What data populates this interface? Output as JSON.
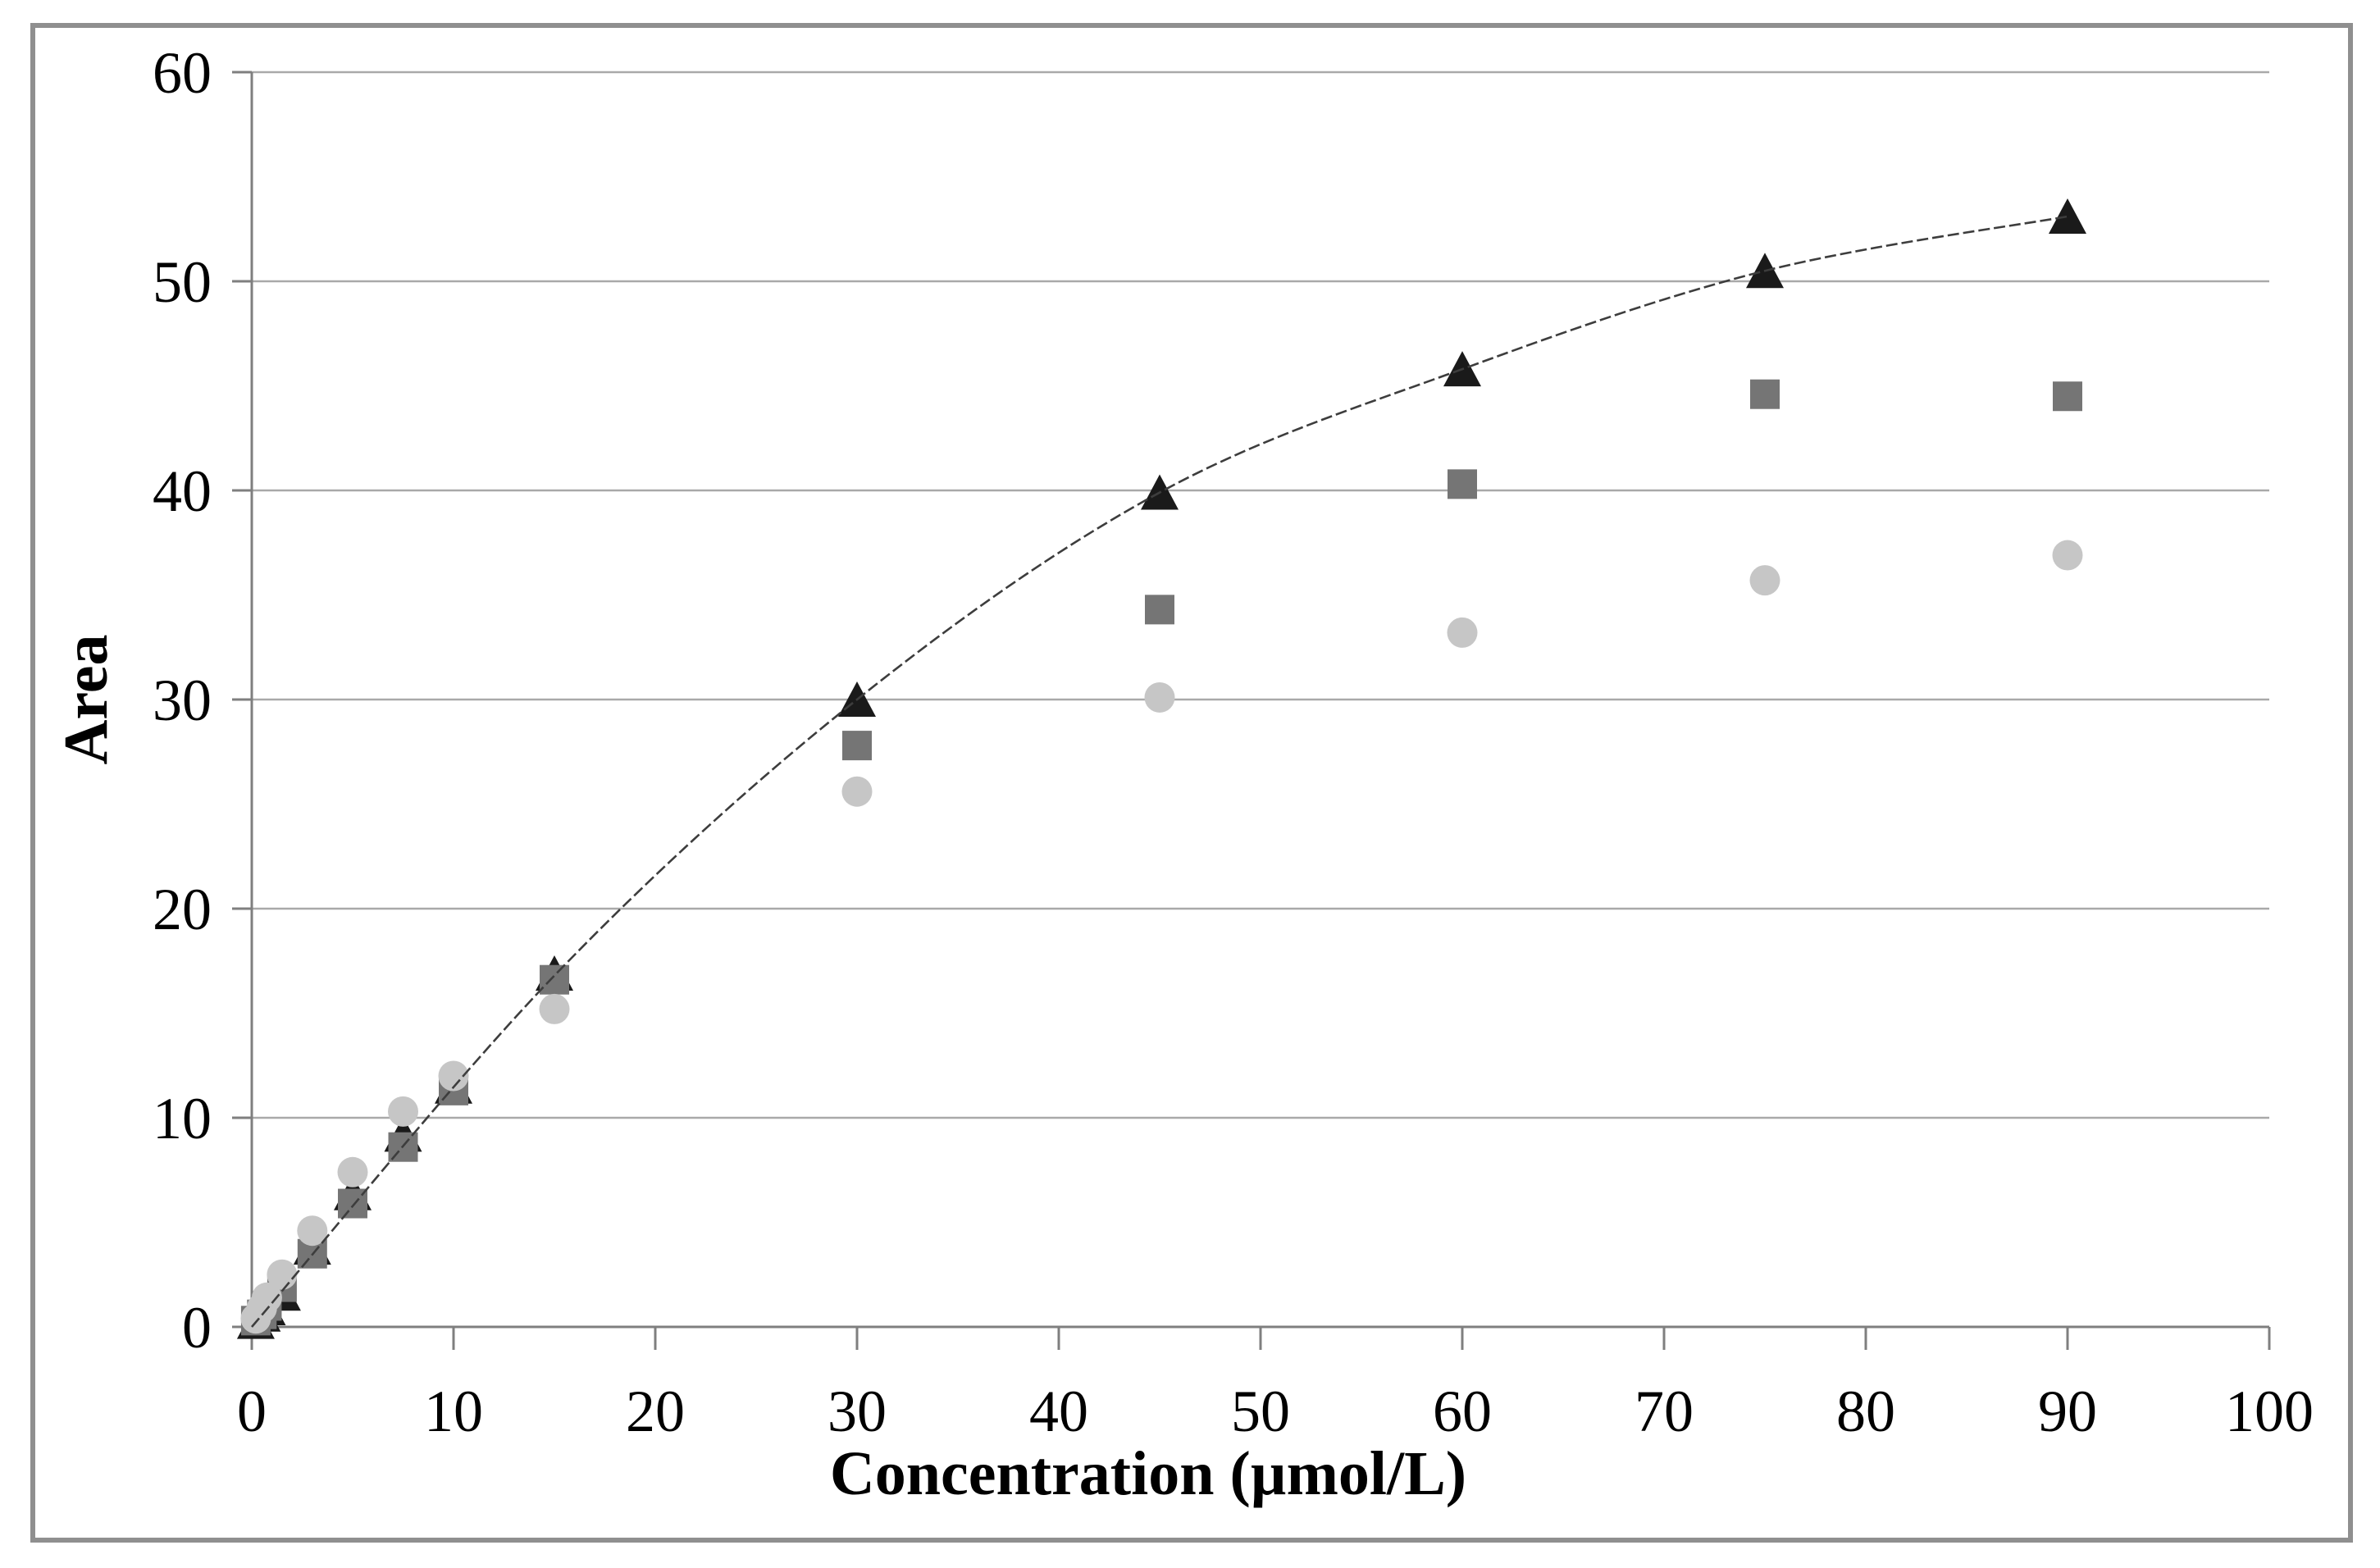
{
  "frame": {
    "border_color": "#8f8f8f"
  },
  "chart_data": {
    "type": "scatter",
    "title": "",
    "xlabel": "Concentration (µmol/L)",
    "ylabel": "Area",
    "xlim": [
      0,
      100
    ],
    "ylim": [
      0,
      60
    ],
    "x_ticks": [
      0,
      10,
      20,
      30,
      40,
      50,
      60,
      70,
      80,
      90,
      100
    ],
    "y_ticks": [
      0,
      10,
      20,
      30,
      40,
      50,
      60
    ],
    "grid": "horizontal-only",
    "legend_position": "none",
    "colors": {
      "gridline": "#a9a9a9",
      "axis": "#7f7f7f",
      "curve": "#3d3d3d",
      "triangle_series": "#1a1a1a",
      "square_series": "#757575",
      "circle_series": "#c6c6c6"
    },
    "x": [
      0.2,
      0.5,
      0.75,
      1.5,
      3,
      5,
      7.5,
      10,
      15,
      30,
      45,
      60,
      75,
      90
    ],
    "series": [
      {
        "name": "triangle-series",
        "marker": "triangle",
        "color": "#1a1a1a",
        "values": [
          0.25,
          0.6,
          0.9,
          1.6,
          3.8,
          6.4,
          9.2,
          11.5,
          16.9,
          30.0,
          39.9,
          45.8,
          50.5,
          53.1
        ]
      },
      {
        "name": "square-series",
        "marker": "square",
        "color": "#757575",
        "values": [
          0.3,
          0.6,
          1.0,
          1.9,
          3.5,
          5.9,
          8.6,
          11.3,
          16.6,
          27.8,
          34.3,
          40.3,
          44.6,
          44.5
        ]
      },
      {
        "name": "circle-series",
        "marker": "circle",
        "color": "#c6c6c6",
        "values": [
          0.4,
          0.9,
          1.4,
          2.5,
          4.6,
          7.4,
          10.3,
          12.0,
          15.2,
          25.6,
          30.1,
          33.2,
          35.7,
          36.9
        ]
      }
    ],
    "fit_curve": {
      "x": [
        0,
        15,
        30,
        45,
        60,
        75,
        90
      ],
      "y": [
        0,
        16.8,
        30.0,
        39.9,
        45.8,
        50.5,
        53.1
      ]
    }
  }
}
